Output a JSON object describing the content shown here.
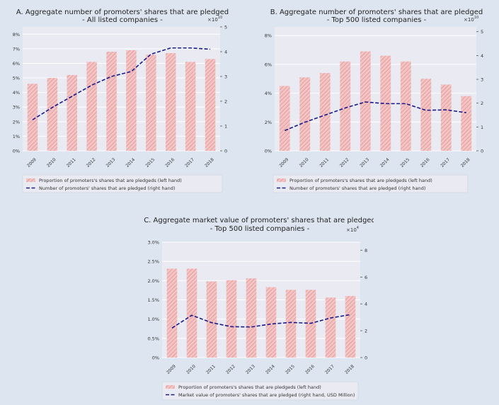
{
  "colors": {
    "page_background": "#dde6f0",
    "plot_background": "#eaeaf2",
    "bar_fill": "#f4c4c4",
    "bar_hatch": "#d98c8c",
    "line": "#1a1a8c",
    "legend_background": "#eaeaf2"
  },
  "chart_data": [
    {
      "type": "bar",
      "title": "A. Aggregate number of promoters' shares that are pledged",
      "subtitle": "- All listed companies -",
      "categories": [
        "2009",
        "2010",
        "2011",
        "2012",
        "2013",
        "2014",
        "2015",
        "2016",
        "2017",
        "2018"
      ],
      "left_axis": {
        "ylim": [
          0,
          8.5
        ],
        "ticks": [
          "0%",
          "1%",
          "2%",
          "3%",
          "4%",
          "5%",
          "6%",
          "7%",
          "8%"
        ],
        "tick_values": [
          0,
          1,
          2,
          3,
          4,
          5,
          6,
          7,
          8
        ]
      },
      "right_axis": {
        "ylim": [
          0,
          5.0
        ],
        "ticks": [
          "0",
          "1",
          "2",
          "3",
          "4",
          "5"
        ],
        "tick_values": [
          0,
          1,
          2,
          3,
          4,
          5
        ],
        "exponent_label": "×10",
        "exponent_power": "10"
      },
      "series": [
        {
          "name": "Proportion of promoters's shares that are pledgeds (left hand)",
          "axis": "left",
          "kind": "bar",
          "values": [
            4.6,
            5.0,
            5.2,
            6.1,
            6.8,
            6.9,
            6.6,
            6.7,
            6.1,
            6.3
          ]
        },
        {
          "name": "Number of promoters' shares that are pledged (right hand)",
          "axis": "right",
          "kind": "line",
          "dashed": true,
          "values": [
            1.25,
            1.75,
            2.2,
            2.65,
            3.0,
            3.2,
            3.9,
            4.15,
            4.15,
            4.1
          ]
        }
      ],
      "grid": true,
      "legend_position": "below"
    },
    {
      "type": "bar",
      "title": "B. Aggregate number of promoters' shares that are pledged",
      "subtitle": "- Top 500 listed companies -",
      "categories": [
        "2009",
        "2010",
        "2011",
        "2012",
        "2013",
        "2014",
        "2015",
        "2016",
        "2017",
        "2018"
      ],
      "left_axis": {
        "ylim": [
          0,
          8.6
        ],
        "ticks": [
          "0%",
          "2%",
          "4%",
          "6%",
          "8%"
        ],
        "tick_values": [
          0,
          2,
          4,
          6,
          8
        ]
      },
      "right_axis": {
        "ylim": [
          0,
          5.2
        ],
        "ticks": [
          "0",
          "1",
          "2",
          "3",
          "4",
          "5"
        ],
        "tick_values": [
          0,
          1,
          2,
          3,
          4,
          5
        ],
        "exponent_label": "×10",
        "exponent_power": "10"
      },
      "series": [
        {
          "name": "Proportion of promoters's shares that are pledgeds (left hand)",
          "axis": "left",
          "kind": "bar",
          "values": [
            4.5,
            5.1,
            5.4,
            6.2,
            6.9,
            6.6,
            6.2,
            5.0,
            4.6,
            3.8
          ]
        },
        {
          "name": "Number of promoters' shares that are pledged (right hand)",
          "axis": "right",
          "kind": "line",
          "dashed": true,
          "values": [
            0.85,
            1.2,
            1.5,
            1.8,
            2.05,
            1.98,
            1.98,
            1.7,
            1.72,
            1.6
          ]
        }
      ],
      "grid": true,
      "legend_position": "below"
    },
    {
      "type": "bar",
      "title": "C. Aggregate market value of promoters' shares that are pledged",
      "subtitle": "- Top 500 listed companies -",
      "categories": [
        "2009",
        "2010",
        "2011",
        "2012",
        "2013",
        "2014",
        "2015",
        "2016",
        "2017",
        "2018"
      ],
      "left_axis": {
        "ylim": [
          0,
          3.0
        ],
        "ticks": [
          "0%",
          "0.5%",
          "1.0%",
          "1.5%",
          "2.0%",
          "2.5%",
          "3.0%"
        ],
        "tick_values": [
          0,
          0.5,
          1.0,
          1.5,
          2.0,
          2.5,
          3.0
        ]
      },
      "right_axis": {
        "ylim": [
          0,
          8.6
        ],
        "ticks": [
          "0",
          "2",
          "4",
          "6",
          "8"
        ],
        "tick_values": [
          0,
          2,
          4,
          6,
          8
        ],
        "exponent_label": "×10",
        "exponent_power": "4"
      },
      "series": [
        {
          "name": "Proportion of promoters's shares that are pledgeds (left hand)",
          "axis": "left",
          "kind": "bar",
          "values": [
            2.31,
            2.31,
            1.98,
            2.01,
            2.06,
            1.83,
            1.76,
            1.76,
            1.56,
            1.6
          ]
        },
        {
          "name": "Market value of promoters' shares that are pledged (right hand, USD Million)",
          "axis": "right",
          "kind": "line",
          "dashed": true,
          "values": [
            2.2,
            3.15,
            2.6,
            2.3,
            2.28,
            2.5,
            2.62,
            2.55,
            2.95,
            3.2
          ]
        }
      ],
      "grid": true,
      "legend_position": "below"
    }
  ]
}
